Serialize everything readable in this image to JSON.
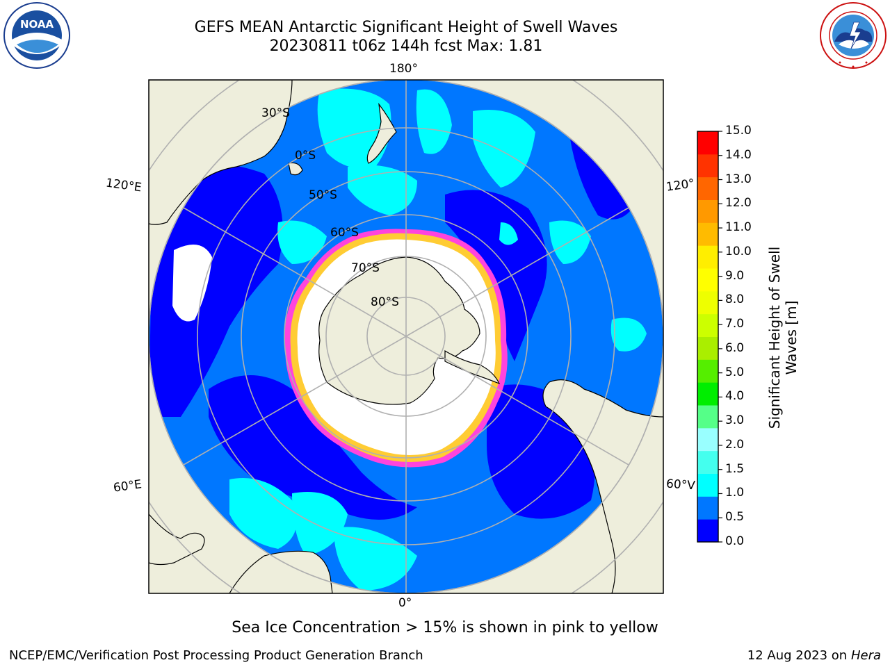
{
  "header": {
    "title_line1": "GEFS MEAN Antarctic Significant Height of Swell Waves",
    "title_line2": "20230811 t06z 144h fcst   Max: 1.81"
  },
  "logos": {
    "left": {
      "icon": "noaa-logo",
      "text": "NOAA"
    },
    "right": {
      "icon": "national-weather-service-logo",
      "ring_text": "NATIONAL WEATHER SERVICE"
    }
  },
  "map": {
    "projection": "south-polar-stereographic",
    "longitude_labels": {
      "top": "180°",
      "upper_left": "120°E",
      "upper_right": "120°",
      "lower_left": "60°E",
      "lower_right": "60°V",
      "bottom": "0°"
    },
    "latitude_labels": [
      "30°S",
      "0°S",
      "50°S",
      "60°S",
      "70°S",
      "80°S"
    ],
    "colors": {
      "land": "#eeeedc",
      "ocean_low": "#0000ff",
      "ocean_mid": "#0077ff",
      "ocean_high": "#00ffff",
      "sea_ice": "#ff44dd",
      "sea_ice_edge": "#ffcc33",
      "ice_shelf": "#ffffff",
      "gridline": "#b0b0b0"
    }
  },
  "colorbar": {
    "label": "Significant Height of Swell Waves [m]",
    "label_line1": "Significant Height of Swell",
    "label_line2": "Waves [m]",
    "ticks": [
      "15.0",
      "14.0",
      "13.0",
      "12.0",
      "11.0",
      "10.0",
      "9.0",
      "8.0",
      "7.0",
      "6.0",
      "5.0",
      "4.0",
      "3.0",
      "2.0",
      "1.5",
      "1.0",
      "0.5",
      "0.0"
    ],
    "colors_bottom_to_top": [
      "#0000ff",
      "#0077ff",
      "#00ffff",
      "#44ffee",
      "#99ffff",
      "#55ff88",
      "#00ee00",
      "#55ee00",
      "#aaee00",
      "#ccff00",
      "#eeff00",
      "#ffff00",
      "#ffee00",
      "#ffbb00",
      "#ff9900",
      "#ff6600",
      "#ff3300",
      "#ff0000"
    ]
  },
  "footer": {
    "note": "Sea Ice Concentration > 15% is shown in pink to yellow",
    "credit": "NCEP/EMC/Verification Post Processing Product Generation Branch",
    "date": "12 Aug 2023 on",
    "machine": "Hera"
  }
}
